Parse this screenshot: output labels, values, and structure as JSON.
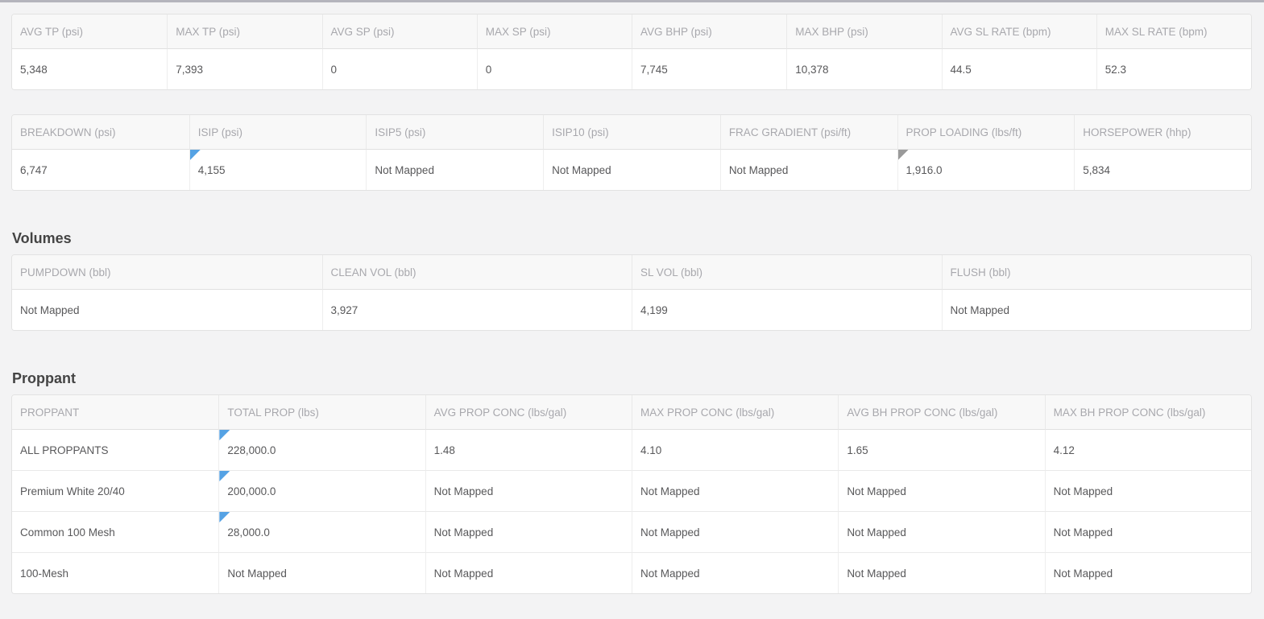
{
  "colors": {
    "accent-blue": "#55a2e4",
    "marker-gray": "#9a9a9a",
    "page-bg": "#f3f3f4",
    "top-bar": "#b4b4bc",
    "header-text": "#a8a8ad",
    "value-text": "#58585a",
    "title-text": "#444444"
  },
  "sections": {
    "volumes_title": "Volumes",
    "proppant_title": "Proppant"
  },
  "summary_table": {
    "columns": [
      "AVG TP (psi)",
      "MAX TP (psi)",
      "AVG SP (psi)",
      "MAX SP (psi)",
      "AVG BHP (psi)",
      "MAX BHP (psi)",
      "AVG SL RATE (bpm)",
      "MAX SL RATE (bpm)"
    ],
    "values": [
      "5,348",
      "7,393",
      "0",
      "0",
      "7,745",
      "10,378",
      "44.5",
      "52.3"
    ]
  },
  "treatment_table": {
    "columns": [
      "BREAKDOWN (psi)",
      "ISIP (psi)",
      "ISIP5 (psi)",
      "ISIP10 (psi)",
      "FRAC GRADIENT (psi/ft)",
      "PROP LOADING (lbs/ft)",
      "HORSEPOWER (hhp)"
    ],
    "values": [
      "6,747",
      "4,155",
      "Not Mapped",
      "Not Mapped",
      "Not Mapped",
      "1,916.0",
      "5,834"
    ],
    "markers": [
      {
        "col": 1,
        "color": "blue"
      },
      {
        "col": 5,
        "color": "gray"
      }
    ]
  },
  "volumes_table": {
    "columns": [
      "PUMPDOWN (bbl)",
      "CLEAN VOL (bbl)",
      "SL VOL (bbl)",
      "FLUSH (bbl)"
    ],
    "values": [
      "Not Mapped",
      "3,927",
      "4,199",
      "Not Mapped"
    ]
  },
  "proppant_table": {
    "columns": [
      "PROPPANT",
      "TOTAL PROP (lbs)",
      "AVG PROP CONC (lbs/gal)",
      "MAX PROP CONC (lbs/gal)",
      "AVG BH PROP CONC (lbs/gal)",
      "MAX BH PROP CONC (lbs/gal)"
    ],
    "rows": [
      [
        "ALL PROPPANTS",
        "228,000.0",
        "1.48",
        "4.10",
        "1.65",
        "4.12"
      ],
      [
        "Premium White 20/40",
        "200,000.0",
        "Not Mapped",
        "Not Mapped",
        "Not Mapped",
        "Not Mapped"
      ],
      [
        "Common 100 Mesh",
        "28,000.0",
        "Not Mapped",
        "Not Mapped",
        "Not Mapped",
        "Not Mapped"
      ],
      [
        "100-Mesh",
        "Not Mapped",
        "Not Mapped",
        "Not Mapped",
        "Not Mapped",
        "Not Mapped"
      ]
    ],
    "markers": [
      {
        "row": 0,
        "col": 1,
        "color": "blue"
      },
      {
        "row": 1,
        "col": 1,
        "color": "blue"
      },
      {
        "row": 2,
        "col": 1,
        "color": "blue"
      }
    ]
  }
}
